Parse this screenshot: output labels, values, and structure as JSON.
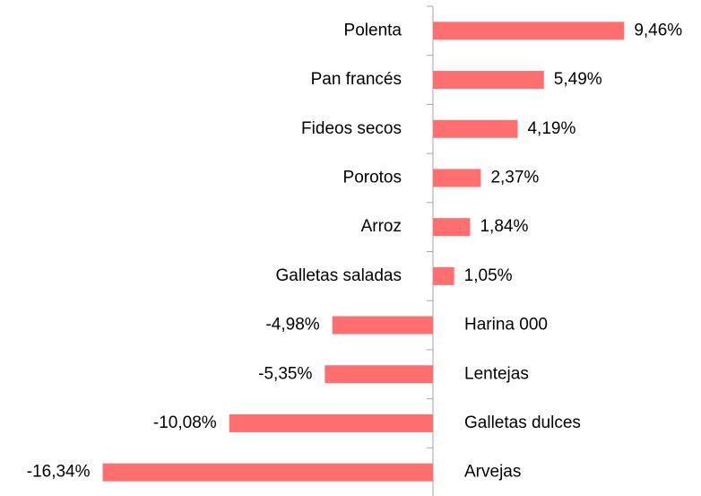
{
  "chart_data": {
    "type": "bar",
    "orientation": "horizontal",
    "categories": [
      "Polenta",
      "Pan francés",
      "Fideos secos",
      "Porotos",
      "Arroz",
      "Galletas saladas",
      "Harina 000",
      "Lentejas",
      "Galletas dulces",
      "Arvejas"
    ],
    "values": [
      9.46,
      5.49,
      4.19,
      2.37,
      1.84,
      1.05,
      -4.98,
      -5.35,
      -10.08,
      -16.34
    ],
    "value_labels": [
      "9,46%",
      "5,49%",
      "4,19%",
      "2,37%",
      "1,84%",
      "1,05%",
      "-4,98%",
      "-5,35%",
      "-10,08%",
      "-16,34%"
    ],
    "color": "#ff6f6f"
  }
}
